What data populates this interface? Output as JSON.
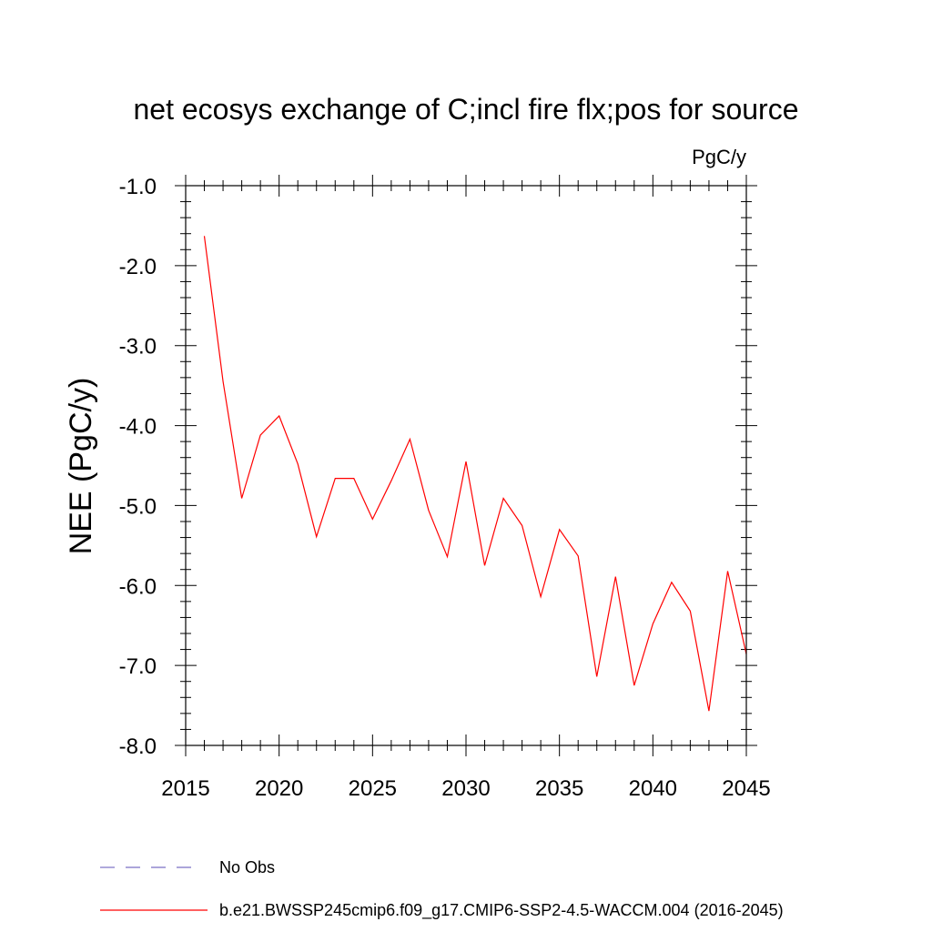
{
  "chart_data": {
    "type": "line",
    "title": "net ecosys exchange of C;incl fire flx;pos for source",
    "units": "PgC/y",
    "ylabel": "NEE  (PgC/y)",
    "xlabel": "",
    "xlim": [
      2015,
      2045
    ],
    "ylim": [
      -8.0,
      -1.0
    ],
    "xticks": [
      2015,
      2020,
      2025,
      2030,
      2035,
      2040,
      2045
    ],
    "xtick_labels": [
      "2015",
      "2020",
      "2025",
      "2030",
      "2035",
      "2040",
      "2045"
    ],
    "yticks": [
      -1.0,
      -2.0,
      -3.0,
      -4.0,
      -5.0,
      -6.0,
      -7.0,
      -8.0
    ],
    "ytick_labels": [
      "-1.0",
      "-2.0",
      "-3.0",
      "-4.0",
      "-5.0",
      "-6.0",
      "-7.0",
      "-8.0"
    ],
    "grid": false,
    "series": [
      {
        "name": "b.e21.BWSSP245cmip6.f09_g17.CMIP6-SSP2-4.5-WACCM.004 (2016-2045)",
        "color": "#ff0000",
        "style": "solid",
        "x": [
          2016,
          2017,
          2018,
          2019,
          2020,
          2021,
          2022,
          2023,
          2024,
          2025,
          2026,
          2027,
          2028,
          2029,
          2030,
          2031,
          2032,
          2033,
          2034,
          2035,
          2036,
          2037,
          2038,
          2039,
          2040,
          2041,
          2042,
          2043,
          2044,
          2045
        ],
        "y": [
          -1.63,
          -3.45,
          -4.91,
          -4.12,
          -3.88,
          -4.48,
          -5.39,
          -4.66,
          -4.66,
          -5.17,
          -4.69,
          -4.17,
          -5.06,
          -5.64,
          -4.45,
          -5.75,
          -4.91,
          -5.25,
          -6.14,
          -5.3,
          -5.63,
          -7.14,
          -5.89,
          -7.25,
          -6.48,
          -5.96,
          -6.32,
          -7.57,
          -5.82,
          -6.86
        ]
      }
    ],
    "legend": [
      {
        "label": "No Obs",
        "color": "#7a6fc4",
        "style": "dashed"
      },
      {
        "label": "b.e21.BWSSP245cmip6.f09_g17.CMIP6-SSP2-4.5-WACCM.004 (2016-2045)",
        "color": "#ff0000",
        "style": "solid"
      }
    ]
  }
}
